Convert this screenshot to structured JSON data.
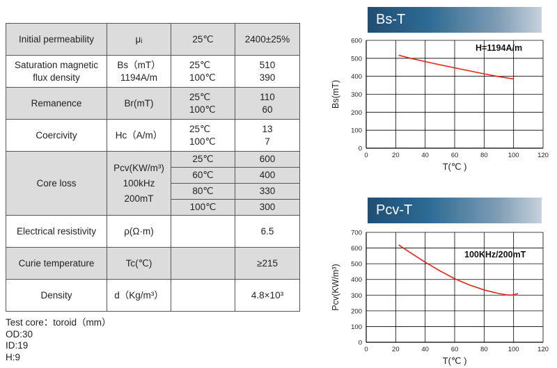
{
  "table": {
    "rows": [
      {
        "property": "Initial permeability",
        "symbol": "μᵢ",
        "conditions": [
          "25℃"
        ],
        "values": [
          "2400±25%"
        ]
      },
      {
        "property": "Saturation magnetic flux density",
        "symbol_lines": [
          "Bs（mT）",
          "1194A/m"
        ],
        "conditions": [
          "25℃",
          "100℃"
        ],
        "values": [
          "510",
          "390"
        ]
      },
      {
        "property": "Remanence",
        "symbol": "Br(mT)",
        "conditions": [
          "25℃",
          "100℃"
        ],
        "values": [
          "110",
          "60"
        ]
      },
      {
        "property": "Coercivity",
        "symbol": "Hc（A/m）",
        "conditions": [
          "25℃",
          "100℃"
        ],
        "values": [
          "13",
          "7"
        ]
      },
      {
        "property": "Core loss",
        "symbol_lines": [
          "Pcv(KW/m³)",
          "100kHz",
          "200mT"
        ],
        "conditions": [
          "25℃",
          "60℃",
          "80℃",
          "100℃"
        ],
        "values": [
          "600",
          "400",
          "330",
          "300"
        ]
      },
      {
        "property": "Electrical resistivity",
        "symbol": "ρ(Ω·m)",
        "conditions": [
          ""
        ],
        "values": [
          "6.5"
        ]
      },
      {
        "property": "Curie temperature",
        "symbol": "Tc(℃)",
        "conditions": [
          ""
        ],
        "values": [
          "≥215"
        ]
      },
      {
        "property": "Density",
        "symbol": "d（Kg/m³）",
        "conditions": [
          ""
        ],
        "values": [
          "4.8×10³"
        ]
      }
    ]
  },
  "test_core": {
    "title": "Test core：toroid（mm）",
    "od": "OD:30",
    "id": "ID:19",
    "h": "H:9"
  },
  "chart_data": [
    {
      "type": "line",
      "title": "Bs-T",
      "annotation": "H=1194A/m",
      "xlabel": "T(℃ )",
      "ylabel": "Bs(mT)",
      "xlim": [
        0,
        120
      ],
      "ylim": [
        0,
        600
      ],
      "xticks": [
        0,
        20,
        40,
        60,
        80,
        100,
        120
      ],
      "yticks": [
        0,
        100,
        200,
        300,
        400,
        500,
        600
      ],
      "grid": true,
      "line_color": "#e8201a",
      "series": [
        {
          "x": [
            22,
            30,
            40,
            50,
            60,
            70,
            80,
            90,
            100
          ],
          "y": [
            517,
            500,
            482,
            464,
            447,
            430,
            414,
            398,
            385
          ]
        }
      ]
    },
    {
      "type": "line",
      "title": "Pcv-T",
      "annotation": "100KHz/200mT",
      "xlabel": "T(℃ )",
      "ylabel": "Pcv(KW/m³)",
      "xlim": [
        0,
        120
      ],
      "ylim": [
        0,
        700
      ],
      "xticks": [
        0,
        20,
        40,
        60,
        80,
        100,
        120
      ],
      "yticks": [
        0,
        100,
        200,
        300,
        400,
        500,
        600,
        700
      ],
      "grid": true,
      "line_color": "#e8201a",
      "series": [
        {
          "x": [
            22,
            30,
            40,
            50,
            60,
            70,
            80,
            90,
            97,
            100,
            103
          ],
          "y": [
            620,
            570,
            510,
            455,
            405,
            365,
            333,
            310,
            300,
            302,
            310
          ]
        }
      ]
    }
  ]
}
